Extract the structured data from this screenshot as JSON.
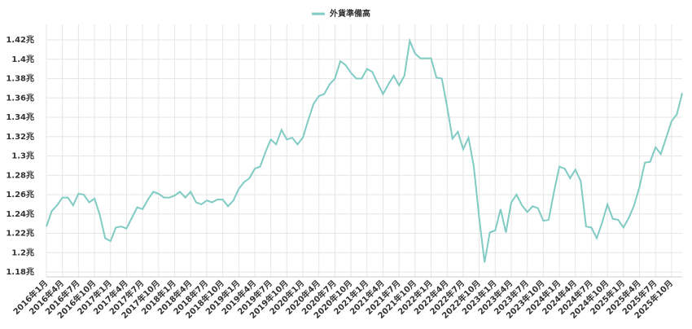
{
  "chart_data": {
    "type": "line",
    "categories": [
      "2016年1月",
      null,
      null,
      "2016年4月",
      null,
      null,
      "2016年7月",
      null,
      null,
      "2016年10月",
      null,
      null,
      "2017年1月",
      null,
      null,
      "2017年4月",
      null,
      null,
      "2017年7月",
      null,
      null,
      "2017年10月",
      null,
      null,
      "2018年1月",
      null,
      null,
      "2018年4月",
      null,
      null,
      "2018年7月",
      null,
      null,
      "2018年10月",
      null,
      null,
      "2019年1月",
      null,
      null,
      "2019年4月",
      null,
      null,
      "2019年7月",
      null,
      null,
      "2019年10月",
      null,
      null,
      "2020年1月",
      null,
      null,
      "2020年4月",
      null,
      null,
      "2020年7月",
      null,
      null,
      "2020年10月",
      null,
      null,
      "2021年1月",
      null,
      null,
      "2021年4月",
      null,
      null,
      "2021年7月",
      null,
      null,
      "2021年10月",
      null,
      null,
      "2022年1月",
      null,
      null,
      "2022年4月",
      null,
      null,
      "2022年7月",
      null,
      null,
      "2022年10月",
      null,
      null,
      "2023年1月",
      null,
      null,
      "2023年4月",
      null,
      null,
      "2023年7月",
      null,
      null,
      "2023年10月",
      null,
      null,
      "2024年1月",
      null,
      null,
      "2024年4月",
      null,
      null,
      "2024年7月",
      null,
      null,
      "2024年10月",
      null,
      null,
      "2025年1月",
      null,
      null,
      "2025年4月",
      null,
      null,
      "2025年7月",
      null,
      null,
      "2025年10月",
      null,
      null
    ],
    "series": [
      {
        "name": "外貨準備高",
        "color": "#80cbc4",
        "values": [
          1.227,
          1.243,
          1.249,
          1.257,
          1.257,
          1.249,
          1.261,
          1.26,
          1.252,
          1.256,
          1.239,
          1.215,
          1.212,
          1.226,
          1.227,
          1.225,
          1.236,
          1.247,
          1.245,
          1.255,
          1.263,
          1.261,
          1.257,
          1.257,
          1.259,
          1.263,
          1.257,
          1.263,
          1.252,
          1.25,
          1.254,
          1.252,
          1.255,
          1.255,
          1.248,
          1.254,
          1.266,
          1.273,
          1.277,
          1.287,
          1.289,
          1.304,
          1.317,
          1.312,
          1.327,
          1.317,
          1.319,
          1.312,
          1.319,
          1.337,
          1.354,
          1.362,
          1.364,
          1.374,
          1.38,
          1.398,
          1.394,
          1.386,
          1.38,
          1.38,
          1.39,
          1.387,
          1.375,
          1.364,
          1.374,
          1.383,
          1.373,
          1.383,
          1.419,
          1.406,
          1.401,
          1.401,
          1.401,
          1.381,
          1.38,
          1.351,
          1.318,
          1.325,
          1.307,
          1.319,
          1.289,
          1.236,
          1.19,
          1.221,
          1.223,
          1.245,
          1.221,
          1.252,
          1.26,
          1.249,
          1.242,
          1.248,
          1.246,
          1.233,
          1.234,
          1.263,
          1.289,
          1.287,
          1.277,
          1.286,
          1.274,
          1.227,
          1.226,
          1.215,
          1.231,
          1.25,
          1.235,
          1.234,
          1.226,
          1.236,
          1.249,
          1.268,
          1.293,
          1.294,
          1.309,
          1.302,
          1.319,
          1.336,
          1.343,
          1.365
        ]
      }
    ],
    "ylim": [
      1.175,
      1.436
    ],
    "yticks": [
      {
        "value": 1.18,
        "label": "1.18兆"
      },
      {
        "value": 1.2,
        "label": "1.2兆"
      },
      {
        "value": 1.22,
        "label": "1.22兆"
      },
      {
        "value": 1.24,
        "label": "1.24兆"
      },
      {
        "value": 1.26,
        "label": "1.26兆"
      },
      {
        "value": 1.28,
        "label": "1.28兆"
      },
      {
        "value": 1.3,
        "label": "1.3兆"
      },
      {
        "value": 1.32,
        "label": "1.32兆"
      },
      {
        "value": 1.34,
        "label": "1.34兆"
      },
      {
        "value": 1.36,
        "label": "1.36兆"
      },
      {
        "value": 1.38,
        "label": "1.38兆"
      },
      {
        "value": 1.4,
        "label": "1.4兆"
      },
      {
        "value": 1.42,
        "label": "1.42兆"
      }
    ],
    "grid": true,
    "legend": "top"
  }
}
